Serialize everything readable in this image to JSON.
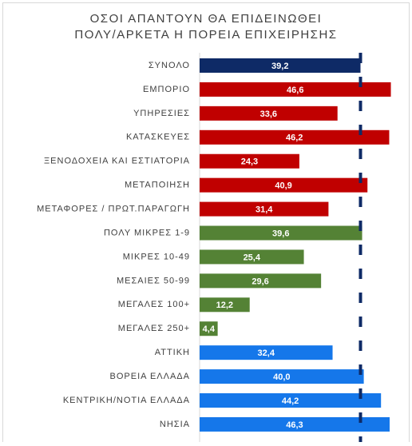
{
  "chart_data": {
    "type": "barh",
    "title": [
      "ΟΣΟΙ ΑΠΑΝΤΟΥΝ ΘΑ ΕΠΙΔΕΙΝΩΘΕΙ",
      "ΠΟΛΥ/ΑΡΚΕΤΑ Η ΠΟΡΕΙΑ ΕΠΙΧΕΙΡΗΣΗΣ"
    ],
    "categories": [
      "ΣΥΝΟΛΟ",
      "ΕΜΠΟΡΙΟ",
      "ΥΠΗΡΕΣΙΕΣ",
      "ΚΑΤΑΣΚΕΥΕΣ",
      "ΞΕΝΟΔΟΧΕΙΑ ΚΑΙ ΕΣΤΙΑΤΟΡΙΑ",
      "ΜΕΤΑΠΟΙΗΣΗ",
      "ΜΕΤΑΦΟΡΕΣ / ΠΡΩΤ.ΠΑΡΑΓΩΓΗ",
      "ΠΟΛΥ ΜΙΚΡΕΣ 1-9",
      "ΜΙΚΡΕΣ 10-49",
      "ΜΕΣΑΙΕΣ 50-99",
      "ΜΕΓΑΛΕΣ 100+",
      "ΜΕΓΑΛΕΣ 250+",
      "ΑΤΤΙΚΗ",
      "ΒΟΡΕΙΑ ΕΛΛΑΔΑ",
      "ΚΕΝΤΡΙΚΗ/ΝΟΤΙΑ ΕΛΛΑΔΑ",
      "ΝΗΣΙΑ"
    ],
    "values": [
      39.2,
      46.6,
      33.6,
      46.2,
      24.3,
      40.9,
      31.4,
      39.6,
      25.4,
      29.6,
      12.2,
      4.4,
      32.4,
      40.0,
      44.2,
      46.3
    ],
    "value_labels": [
      "39,2",
      "46,6",
      "33,6",
      "46,2",
      "24,3",
      "40,9",
      "31,4",
      "39,6",
      "25,4",
      "29,6",
      "12,2",
      "4,4",
      "32,4",
      "40,0",
      "44,2",
      "46,3"
    ],
    "colors": [
      "#0e2a66",
      "#c00000",
      "#c00000",
      "#c00000",
      "#c00000",
      "#c00000",
      "#c00000",
      "#548235",
      "#548235",
      "#548235",
      "#548235",
      "#548235",
      "#1577ea",
      "#1577ea",
      "#1577ea",
      "#1577ea"
    ],
    "xlim": [
      0,
      50
    ],
    "reference_line_color": "#0e2a66"
  }
}
